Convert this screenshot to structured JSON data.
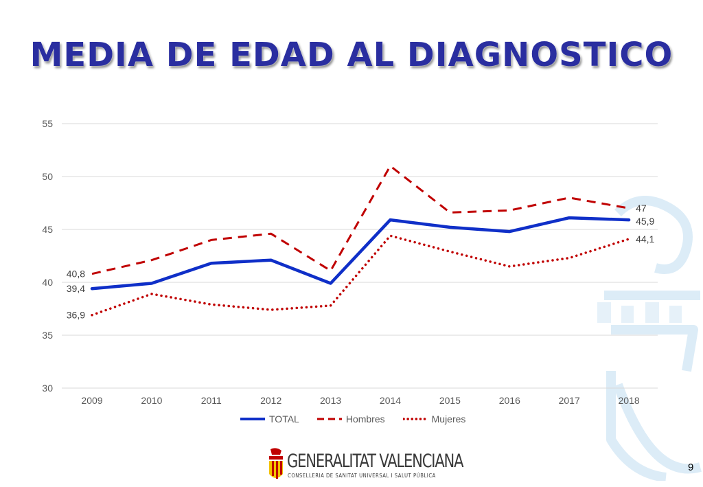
{
  "slide": {
    "title": "MEDIA DE EDAD AL DIAGNOSTICO",
    "page_number": "9"
  },
  "footer": {
    "brand_name": "GENERALITAT VALENCIANA",
    "brand_sub": "CONSELLERIA DE SANITAT UNIVERSAL I SALUT PÚBLICA"
  },
  "colors": {
    "title": "#2a2ea0",
    "total": "#0f2fc8",
    "hombres": "#c00000",
    "mujeres": "#c00000",
    "grid": "#d9d9d9",
    "watermark": "#dcecf7"
  },
  "chart_data": {
    "type": "line",
    "title": "",
    "xlabel": "",
    "ylabel": "",
    "categories": [
      "2009",
      "2010",
      "2011",
      "2012",
      "2013",
      "2014",
      "2015",
      "2016",
      "2017",
      "2018"
    ],
    "ylim": [
      30,
      55
    ],
    "yticks": [
      "30",
      "35",
      "40",
      "45",
      "50",
      "55"
    ],
    "grid": true,
    "legend_position": "bottom",
    "series": [
      {
        "name": "TOTAL",
        "style": "solid",
        "values": [
          39.4,
          39.9,
          41.8,
          42.1,
          39.9,
          45.9,
          45.2,
          44.8,
          46.1,
          45.9
        ]
      },
      {
        "name": "Hombres",
        "style": "dashed",
        "values": [
          40.8,
          42.1,
          44.0,
          44.6,
          41.1,
          51.0,
          46.6,
          46.8,
          48.0,
          47.0
        ]
      },
      {
        "name": "Mujeres",
        "style": "dotted",
        "values": [
          36.9,
          38.9,
          37.9,
          37.4,
          37.8,
          44.4,
          42.9,
          41.5,
          42.3,
          44.1
        ]
      }
    ],
    "data_labels": [
      {
        "text": "40,8"
      },
      {
        "text": "39,4"
      },
      {
        "text": "36,9"
      },
      {
        "text": "47"
      },
      {
        "text": "45,9"
      },
      {
        "text": "44,1"
      }
    ]
  }
}
